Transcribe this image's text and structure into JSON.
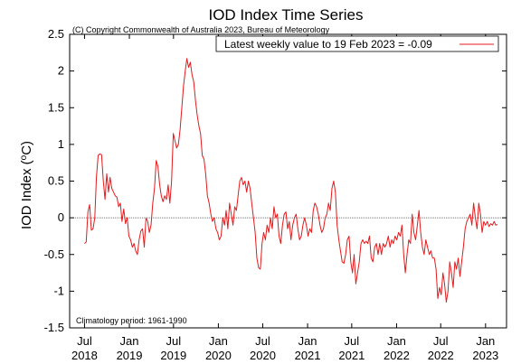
{
  "chart_data": {
    "type": "line",
    "title": "IOD Index Time Series",
    "copyright": "(C) Copyright Commonwealth of Australia 2023, Bureau of Meteorology",
    "ylabel_main": "IOD Index (",
    "ylabel_sup": "o",
    "ylabel_unit": "C)",
    "climatology": "Climatology period: 1961-1990",
    "ylim": [
      -1.5,
      2.5
    ],
    "yticks": [
      "2.5",
      "2",
      "1.5",
      "1",
      "0.5",
      "0",
      "-0.5",
      "-1",
      "-1.5"
    ],
    "ytick_values": [
      2.5,
      2,
      1.5,
      1,
      0.5,
      0,
      -0.5,
      -1,
      -1.5
    ],
    "xlim": [
      "2018-05-01",
      "2023-03-28"
    ],
    "xticks": [
      {
        "date": "2018-07-01",
        "line1": "Jul",
        "line2": "2018"
      },
      {
        "date": "2019-01-01",
        "line1": "Jan",
        "line2": "2019"
      },
      {
        "date": "2019-07-01",
        "line1": "Jul",
        "line2": "2019"
      },
      {
        "date": "2020-01-01",
        "line1": "Jan",
        "line2": "2020"
      },
      {
        "date": "2020-07-01",
        "line1": "Jul",
        "line2": "2020"
      },
      {
        "date": "2021-01-01",
        "line1": "Jan",
        "line2": "2021"
      },
      {
        "date": "2021-07-01",
        "line1": "Jul",
        "line2": "2021"
      },
      {
        "date": "2022-01-01",
        "line1": "Jan",
        "line2": "2022"
      },
      {
        "date": "2022-07-01",
        "line1": "Jul",
        "line2": "2022"
      },
      {
        "date": "2023-01-01",
        "line1": "Jan",
        "line2": "2023"
      }
    ],
    "legend": "Latest weekly value to 19 Feb 2023 = -0.09",
    "series_color": "#e41a1c",
    "series": [
      {
        "values": [
          [
            "2018-07-01",
            -0.35
          ],
          [
            "2018-07-08",
            -0.33
          ],
          [
            "2018-07-15",
            0.08
          ],
          [
            "2018-07-22",
            0.18
          ],
          [
            "2018-07-29",
            -0.17
          ],
          [
            "2018-08-05",
            -0.15
          ],
          [
            "2018-08-12",
            0.0
          ],
          [
            "2018-08-19",
            0.55
          ],
          [
            "2018-08-26",
            0.85
          ],
          [
            "2018-09-02",
            0.87
          ],
          [
            "2018-09-09",
            0.86
          ],
          [
            "2018-09-16",
            0.5
          ],
          [
            "2018-09-23",
            0.25
          ],
          [
            "2018-09-30",
            0.6
          ],
          [
            "2018-10-07",
            0.35
          ],
          [
            "2018-10-14",
            0.55
          ],
          [
            "2018-10-21",
            0.4
          ],
          [
            "2018-10-28",
            0.35
          ],
          [
            "2018-11-04",
            0.3
          ],
          [
            "2018-11-11",
            0.28
          ],
          [
            "2018-11-18",
            0.15
          ],
          [
            "2018-11-25",
            0.2
          ],
          [
            "2018-12-02",
            -0.05
          ],
          [
            "2018-12-09",
            0.12
          ],
          [
            "2018-12-16",
            -0.08
          ],
          [
            "2018-12-23",
            0.0
          ],
          [
            "2018-12-30",
            -0.25
          ],
          [
            "2019-01-06",
            -0.3
          ],
          [
            "2019-01-13",
            -0.4
          ],
          [
            "2019-01-20",
            -0.35
          ],
          [
            "2019-01-27",
            -0.45
          ],
          [
            "2019-02-03",
            -0.5
          ],
          [
            "2019-02-10",
            -0.3
          ],
          [
            "2019-02-17",
            -0.18
          ],
          [
            "2019-02-24",
            -0.15
          ],
          [
            "2019-03-03",
            -0.4
          ],
          [
            "2019-03-10",
            0.0
          ],
          [
            "2019-03-17",
            -0.05
          ],
          [
            "2019-03-24",
            -0.2
          ],
          [
            "2019-03-31",
            -0.1
          ],
          [
            "2019-04-07",
            0.2
          ],
          [
            "2019-04-14",
            0.4
          ],
          [
            "2019-04-21",
            0.78
          ],
          [
            "2019-04-28",
            0.7
          ],
          [
            "2019-05-05",
            0.45
          ],
          [
            "2019-05-12",
            0.3
          ],
          [
            "2019-05-19",
            0.22
          ],
          [
            "2019-05-26",
            0.3
          ],
          [
            "2019-06-02",
            0.25
          ],
          [
            "2019-06-09",
            0.45
          ],
          [
            "2019-06-16",
            0.2
          ],
          [
            "2019-06-23",
            0.5
          ],
          [
            "2019-06-30",
            1.15
          ],
          [
            "2019-07-07",
            1.05
          ],
          [
            "2019-07-14",
            0.95
          ],
          [
            "2019-07-21",
            1.0
          ],
          [
            "2019-07-28",
            1.2
          ],
          [
            "2019-08-04",
            1.5
          ],
          [
            "2019-08-11",
            1.8
          ],
          [
            "2019-08-18",
            2.0
          ],
          [
            "2019-08-25",
            2.17
          ],
          [
            "2019-09-01",
            2.05
          ],
          [
            "2019-09-08",
            2.12
          ],
          [
            "2019-09-15",
            1.95
          ],
          [
            "2019-09-22",
            1.85
          ],
          [
            "2019-09-29",
            1.6
          ],
          [
            "2019-10-06",
            1.4
          ],
          [
            "2019-10-13",
            1.25
          ],
          [
            "2019-10-20",
            1.15
          ],
          [
            "2019-10-27",
            0.85
          ],
          [
            "2019-11-03",
            0.8
          ],
          [
            "2019-11-10",
            0.6
          ],
          [
            "2019-11-17",
            0.3
          ],
          [
            "2019-11-24",
            0.2
          ],
          [
            "2019-12-01",
            0.05
          ],
          [
            "2019-12-08",
            -0.05
          ],
          [
            "2019-12-15",
            0.0
          ],
          [
            "2019-12-22",
            -0.15
          ],
          [
            "2019-12-29",
            -0.2
          ],
          [
            "2020-01-05",
            -0.3
          ],
          [
            "2020-01-12",
            -0.25
          ],
          [
            "2020-01-19",
            0.0
          ],
          [
            "2020-01-26",
            -0.1
          ],
          [
            "2020-02-02",
            0.1
          ],
          [
            "2020-02-09",
            -0.15
          ],
          [
            "2020-02-16",
            0.2
          ],
          [
            "2020-02-23",
            0.05
          ],
          [
            "2020-03-01",
            -0.1
          ],
          [
            "2020-03-08",
            0.15
          ],
          [
            "2020-03-15",
            0.1
          ],
          [
            "2020-03-22",
            0.3
          ],
          [
            "2020-03-29",
            0.5
          ],
          [
            "2020-04-05",
            0.55
          ],
          [
            "2020-04-12",
            0.45
          ],
          [
            "2020-04-19",
            0.5
          ],
          [
            "2020-04-26",
            0.35
          ],
          [
            "2020-05-03",
            0.5
          ],
          [
            "2020-05-10",
            0.4
          ],
          [
            "2020-05-17",
            0.2
          ],
          [
            "2020-05-24",
            0.0
          ],
          [
            "2020-05-31",
            -0.2
          ],
          [
            "2020-06-07",
            -0.55
          ],
          [
            "2020-06-14",
            -0.68
          ],
          [
            "2020-06-21",
            -0.7
          ],
          [
            "2020-06-28",
            -0.35
          ],
          [
            "2020-07-05",
            -0.2
          ],
          [
            "2020-07-12",
            -0.3
          ],
          [
            "2020-07-19",
            -0.1
          ],
          [
            "2020-07-26",
            -0.2
          ],
          [
            "2020-08-02",
            0.0
          ],
          [
            "2020-08-09",
            -0.15
          ],
          [
            "2020-08-16",
            0.15
          ],
          [
            "2020-08-23",
            0.0
          ],
          [
            "2020-08-30",
            0.05
          ],
          [
            "2020-09-06",
            -0.25
          ],
          [
            "2020-09-13",
            -0.35
          ],
          [
            "2020-09-20",
            -0.1
          ],
          [
            "2020-09-27",
            0.05
          ],
          [
            "2020-10-04",
            0.08
          ],
          [
            "2020-10-11",
            -0.15
          ],
          [
            "2020-10-18",
            -0.05
          ],
          [
            "2020-10-25",
            -0.3
          ],
          [
            "2020-11-01",
            -0.1
          ],
          [
            "2020-11-08",
            0.0
          ],
          [
            "2020-11-15",
            0.05
          ],
          [
            "2020-11-22",
            -0.15
          ],
          [
            "2020-11-29",
            -0.3
          ],
          [
            "2020-12-06",
            -0.25
          ],
          [
            "2020-12-13",
            -0.1
          ],
          [
            "2020-12-20",
            0.0
          ],
          [
            "2020-12-27",
            -0.1
          ],
          [
            "2021-01-03",
            -0.25
          ],
          [
            "2021-01-10",
            -0.15
          ],
          [
            "2021-01-17",
            -0.2
          ],
          [
            "2021-01-24",
            0.1
          ],
          [
            "2021-01-31",
            0.2
          ],
          [
            "2021-02-07",
            0.15
          ],
          [
            "2021-02-14",
            0.05
          ],
          [
            "2021-02-21",
            -0.1
          ],
          [
            "2021-02-28",
            -0.2
          ],
          [
            "2021-03-07",
            -0.15
          ],
          [
            "2021-03-14",
            0.0
          ],
          [
            "2021-03-21",
            0.05
          ],
          [
            "2021-03-28",
            0.2
          ],
          [
            "2021-04-04",
            0.1
          ],
          [
            "2021-04-11",
            0.4
          ],
          [
            "2021-04-18",
            0.5
          ],
          [
            "2021-04-25",
            0.35
          ],
          [
            "2021-05-02",
            -0.1
          ],
          [
            "2021-05-09",
            -0.3
          ],
          [
            "2021-05-16",
            -0.45
          ],
          [
            "2021-05-23",
            -0.6
          ],
          [
            "2021-05-30",
            -0.62
          ],
          [
            "2021-06-06",
            -0.5
          ],
          [
            "2021-06-13",
            -0.3
          ],
          [
            "2021-06-20",
            -0.25
          ],
          [
            "2021-06-27",
            -0.6
          ],
          [
            "2021-07-04",
            -0.75
          ],
          [
            "2021-07-11",
            -0.5
          ],
          [
            "2021-07-18",
            -0.9
          ],
          [
            "2021-07-25",
            -0.75
          ],
          [
            "2021-08-01",
            -0.6
          ],
          [
            "2021-08-08",
            -0.35
          ],
          [
            "2021-08-15",
            -0.3
          ],
          [
            "2021-08-22",
            -0.35
          ],
          [
            "2021-08-29",
            -0.32
          ],
          [
            "2021-09-05",
            -0.35
          ],
          [
            "2021-09-12",
            -0.25
          ],
          [
            "2021-09-19",
            -0.55
          ],
          [
            "2021-09-26",
            -0.6
          ],
          [
            "2021-10-03",
            -0.4
          ],
          [
            "2021-10-10",
            -0.35
          ],
          [
            "2021-10-17",
            -0.5
          ],
          [
            "2021-10-24",
            -0.35
          ],
          [
            "2021-10-31",
            -0.5
          ],
          [
            "2021-11-07",
            -0.35
          ],
          [
            "2021-11-14",
            -0.4
          ],
          [
            "2021-11-21",
            -0.35
          ],
          [
            "2021-11-28",
            -0.25
          ],
          [
            "2021-12-05",
            -0.4
          ],
          [
            "2021-12-12",
            -0.3
          ],
          [
            "2021-12-19",
            -0.35
          ],
          [
            "2021-12-26",
            -0.25
          ],
          [
            "2022-01-02",
            -0.3
          ],
          [
            "2022-01-09",
            -0.2
          ],
          [
            "2022-01-16",
            -0.25
          ],
          [
            "2022-01-23",
            -0.1
          ],
          [
            "2022-01-30",
            -0.5
          ],
          [
            "2022-02-06",
            -0.75
          ],
          [
            "2022-02-13",
            -0.5
          ],
          [
            "2022-02-20",
            -0.3
          ],
          [
            "2022-02-27",
            -0.35
          ],
          [
            "2022-03-06",
            0.05
          ],
          [
            "2022-03-13",
            -0.2
          ],
          [
            "2022-03-20",
            -0.3
          ],
          [
            "2022-03-27",
            -0.1
          ],
          [
            "2022-04-03",
            0.1
          ],
          [
            "2022-04-10",
            -0.2
          ],
          [
            "2022-04-17",
            -0.4
          ],
          [
            "2022-04-24",
            -0.5
          ],
          [
            "2022-05-01",
            -0.3
          ],
          [
            "2022-05-08",
            -0.4
          ],
          [
            "2022-05-15",
            -0.5
          ],
          [
            "2022-05-22",
            -0.45
          ],
          [
            "2022-05-29",
            -0.55
          ],
          [
            "2022-06-05",
            -0.55
          ],
          [
            "2022-06-12",
            -0.7
          ],
          [
            "2022-06-19",
            -1.1
          ],
          [
            "2022-06-26",
            -0.95
          ],
          [
            "2022-07-03",
            -1.05
          ],
          [
            "2022-07-10",
            -0.75
          ],
          [
            "2022-07-17",
            -0.9
          ],
          [
            "2022-07-24",
            -1.15
          ],
          [
            "2022-07-31",
            -1.0
          ],
          [
            "2022-08-07",
            -0.6
          ],
          [
            "2022-08-14",
            -0.75
          ],
          [
            "2022-08-21",
            -0.95
          ],
          [
            "2022-08-28",
            -0.6
          ],
          [
            "2022-09-04",
            -0.7
          ],
          [
            "2022-09-11",
            -0.55
          ],
          [
            "2022-09-18",
            -0.8
          ],
          [
            "2022-09-25",
            -0.6
          ],
          [
            "2022-10-02",
            -0.4
          ],
          [
            "2022-10-09",
            -0.15
          ],
          [
            "2022-10-16",
            -0.05
          ],
          [
            "2022-10-23",
            0.0
          ],
          [
            "2022-10-30",
            0.05
          ],
          [
            "2022-11-06",
            -0.1
          ],
          [
            "2022-11-13",
            0.2
          ],
          [
            "2022-11-20",
            0.0
          ],
          [
            "2022-11-27",
            -0.15
          ],
          [
            "2022-12-04",
            0.2
          ],
          [
            "2022-12-11",
            0.05
          ],
          [
            "2022-12-18",
            -0.2
          ],
          [
            "2022-12-25",
            -0.05
          ],
          [
            "2023-01-01",
            -0.1
          ],
          [
            "2023-01-08",
            -0.05
          ],
          [
            "2023-01-15",
            -0.12
          ],
          [
            "2023-01-22",
            -0.08
          ],
          [
            "2023-01-29",
            -0.1
          ],
          [
            "2023-02-05",
            -0.05
          ],
          [
            "2023-02-12",
            -0.1
          ],
          [
            "2023-02-19",
            -0.09
          ]
        ]
      }
    ]
  }
}
